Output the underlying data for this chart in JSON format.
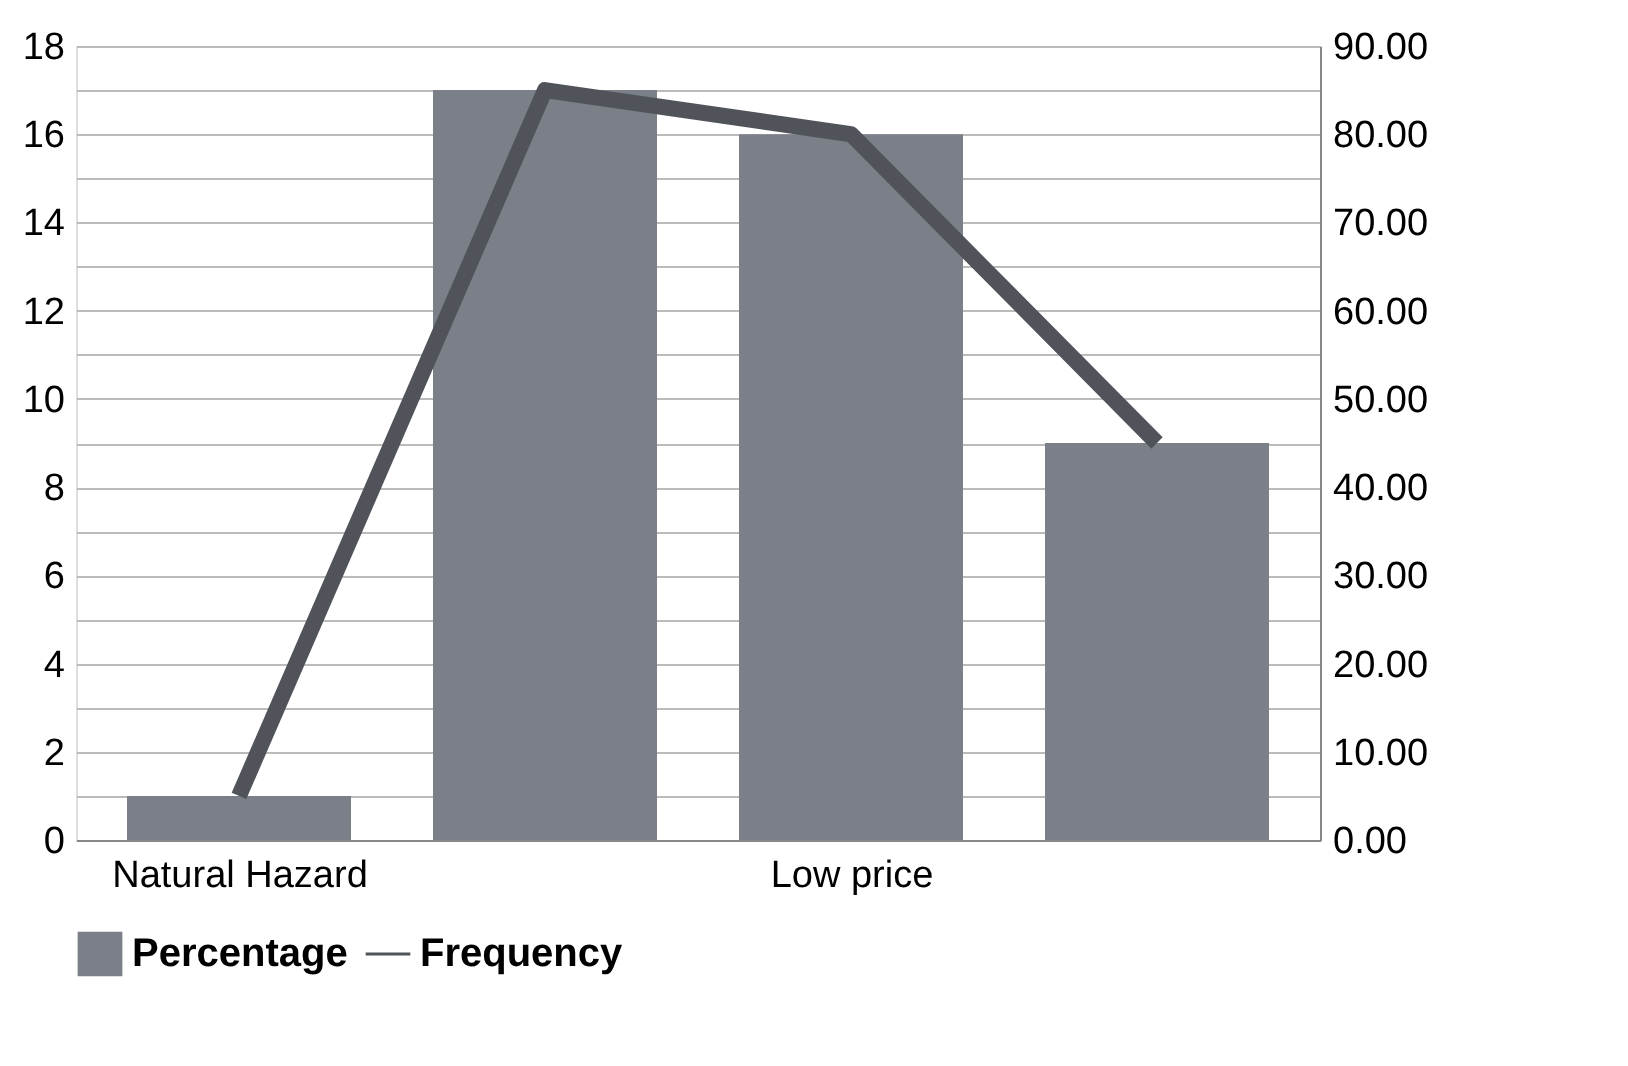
{
  "chart_data": {
    "type": "bar",
    "categories": [
      "Natural Hazard",
      null,
      "Low price",
      null
    ],
    "series": [
      {
        "name": "Frequency",
        "type": "line",
        "axis": "y2",
        "color": "#50545a",
        "values": [
          5,
          85,
          80,
          45
        ]
      },
      {
        "name": "Percentage",
        "color": "#7b8088",
        "values": [
          1,
          17,
          16,
          9
        ]
      }
    ],
    "ylim": [
      0,
      18
    ],
    "yticks": [
      0,
      {
        "value": 1,
        "label": null
      },
      2,
      {
        "value": 3,
        "label": null
      },
      4,
      {
        "value": 5,
        "label": null
      },
      6,
      {
        "value": 7,
        "label": null
      },
      8,
      {
        "value": 9,
        "label": null
      },
      10,
      {
        "value": 11,
        "label": null
      },
      12,
      {
        "value": 13,
        "label": null
      },
      14,
      {
        "value": 15,
        "label": null
      },
      16,
      {
        "value": 17,
        "label": null
      },
      18
    ],
    "y2lim": [
      0,
      90
    ],
    "y2ticks": [
      {
        "value": 0,
        "label": "0.00"
      },
      {
        "value": 10,
        "label": "10.00"
      },
      {
        "value": 20,
        "label": "20.00"
      },
      {
        "value": 30,
        "label": "30.00"
      },
      {
        "value": 40,
        "label": "40.00"
      },
      {
        "value": 50,
        "label": "50.00"
      },
      {
        "value": 60,
        "label": "60.00"
      },
      {
        "value": 70,
        "label": "70.00"
      },
      {
        "value": 80,
        "label": "80.00"
      },
      {
        "value": 90,
        "label": "90.00"
      }
    ],
    "grid": "y",
    "legend": "bottom",
    "line_style": "solid",
    "marker": "none"
  }
}
